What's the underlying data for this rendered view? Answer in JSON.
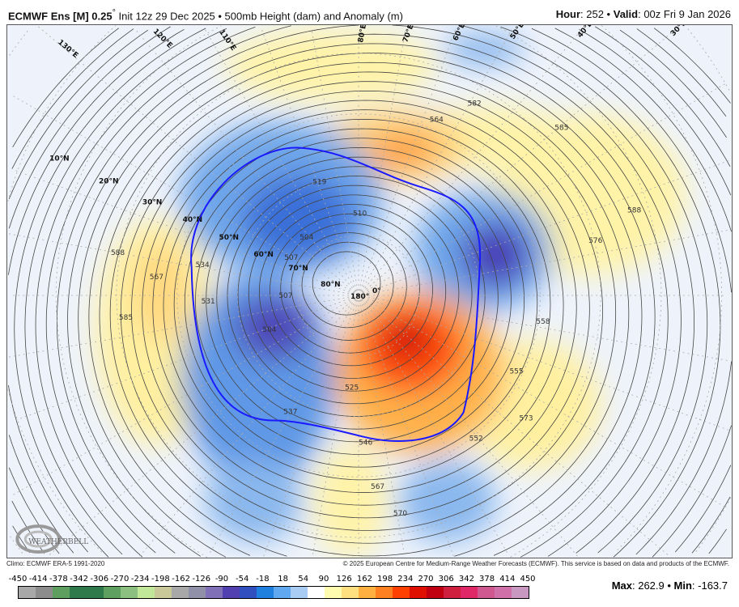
{
  "header": {
    "model": "ECMWF Ens [M] 0.25",
    "degree": "°",
    "init": " Init 12z 29 Dec 2025 • 500mb Height (dam) and Anomaly (m)",
    "hour_label": "Hour",
    "hour": ": 252 • ",
    "valid_label": "Valid",
    "valid": ": 00z Fri 9 Jan 2026"
  },
  "map": {
    "lat_labels": [
      "10°N",
      "20°N",
      "30°N",
      "40°N",
      "50°N",
      "60°N",
      "70°N",
      "80°N",
      "180°",
      "0°"
    ],
    "lon_labels": [
      "130°E",
      "120°E",
      "110°E",
      "80°E",
      "70°E",
      "60°E",
      "50°E",
      "40°E",
      "30°E"
    ],
    "contour_labels": [
      "519",
      "504",
      "510",
      "507",
      "588",
      "585",
      "567",
      "534",
      "531",
      "507",
      "504",
      "537",
      "564",
      "582",
      "585",
      "588",
      "576",
      "558",
      "555",
      "573",
      "552",
      "546",
      "567",
      "570",
      "525"
    ],
    "contour_540_color": "#1a1aff",
    "logo": "WeatherBELL Analytics LLC"
  },
  "footer": {
    "climo": "Climo: ECMWF ERA-5 1991-2020",
    "copyright": "© 2025 European Centre for Medium-Range Weather Forecasts (ECMWF). This service is based on data and products of the ECMWF."
  },
  "colorbar": {
    "ticks": [
      "-450",
      "-414",
      "-378",
      "-342",
      "-306",
      "-270",
      "-234",
      "-198",
      "-162",
      "-126",
      "-90",
      "-54",
      "-18",
      "18",
      "54",
      "90",
      "126",
      "162",
      "198",
      "234",
      "270",
      "306",
      "342",
      "378",
      "414",
      "450"
    ],
    "colors": [
      "#a8a8a8",
      "#8c8c8c",
      "#5e9e5e",
      "#2e7a4a",
      "#2e7a4a",
      "#5ea060",
      "#8cc080",
      "#c0e898",
      "#c8c898",
      "#a8a8a8",
      "#9090a8",
      "#8070b8",
      "#5040b0",
      "#3050c0",
      "#2080e0",
      "#60a8f0",
      "#a8ccf4",
      "#ffffff",
      "#fffcb0",
      "#ffe080",
      "#ffb040",
      "#ff8020",
      "#ff4000",
      "#e01000",
      "#c00010",
      "#d02040",
      "#e02868",
      "#d05890",
      "#d070a8",
      "#c898c0"
    ]
  },
  "stats": {
    "max_label": "Max",
    "max": ": 262.9 • ",
    "min_label": "Min",
    "min": ": -163.7"
  }
}
